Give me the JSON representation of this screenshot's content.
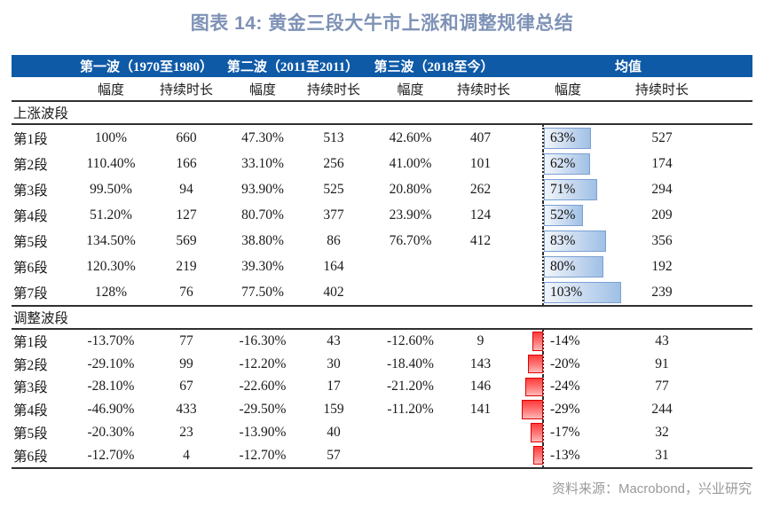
{
  "title": "图表 14: 黄金三段大牛市上涨和调整规律总结",
  "source": "资料来源：Macrobond，兴业研究",
  "colors": {
    "header_band": "#0f5aa7",
    "title_text": "#7e92b6",
    "up_bar_border": "#7ba0d4",
    "up_bar_fill": "#9fc0e6",
    "down_bar_border": "#e00000",
    "down_bar_fill": "#ff3b3b",
    "source_text": "#9a9a9a"
  },
  "table": {
    "wave_headers": [
      {
        "label": "第一波（1970至1980）"
      },
      {
        "label": "第二波（2011至2011）"
      },
      {
        "label": "第三波（2018至今）"
      },
      {
        "label": "均值"
      }
    ],
    "sub_headers": [
      "幅度",
      "持续时长",
      "幅度",
      "持续时长",
      "幅度",
      "持续时长",
      "幅度",
      "持续时长"
    ],
    "sections": [
      {
        "label": "上涨波段",
        "type": "up",
        "rows": [
          {
            "label": "第1段",
            "w1_amp": "100%",
            "w1_dur": "660",
            "w2_amp": "47.30%",
            "w2_dur": "513",
            "w3_amp": "42.60%",
            "w3_dur": "407",
            "mean_amp": "63%",
            "mean_val": 63,
            "mean_dur": "527"
          },
          {
            "label": "第2段",
            "w1_amp": "110.40%",
            "w1_dur": "166",
            "w2_amp": "33.10%",
            "w2_dur": "256",
            "w3_amp": "41.00%",
            "w3_dur": "101",
            "mean_amp": "62%",
            "mean_val": 62,
            "mean_dur": "174"
          },
          {
            "label": "第3段",
            "w1_amp": "99.50%",
            "w1_dur": "94",
            "w2_amp": "93.90%",
            "w2_dur": "525",
            "w3_amp": "20.80%",
            "w3_dur": "262",
            "mean_amp": "71%",
            "mean_val": 71,
            "mean_dur": "294"
          },
          {
            "label": "第4段",
            "w1_amp": "51.20%",
            "w1_dur": "127",
            "w2_amp": "80.70%",
            "w2_dur": "377",
            "w3_amp": "23.90%",
            "w3_dur": "124",
            "mean_amp": "52%",
            "mean_val": 52,
            "mean_dur": "209"
          },
          {
            "label": "第5段",
            "w1_amp": "134.50%",
            "w1_dur": "569",
            "w2_amp": "38.80%",
            "w2_dur": "86",
            "w3_amp": "76.70%",
            "w3_dur": "412",
            "mean_amp": "83%",
            "mean_val": 83,
            "mean_dur": "356"
          },
          {
            "label": "第6段",
            "w1_amp": "120.30%",
            "w1_dur": "219",
            "w2_amp": "39.30%",
            "w2_dur": "164",
            "w3_amp": "",
            "w3_dur": "",
            "mean_amp": "80%",
            "mean_val": 80,
            "mean_dur": "192"
          },
          {
            "label": "第7段",
            "w1_amp": "128%",
            "w1_dur": "76",
            "w2_amp": "77.50%",
            "w2_dur": "402",
            "w3_amp": "",
            "w3_dur": "",
            "mean_amp": "103%",
            "mean_val": 103,
            "mean_dur": "239"
          }
        ]
      },
      {
        "label": "调整波段",
        "type": "down",
        "rows": [
          {
            "label": "第1段",
            "w1_amp": "-13.70%",
            "w1_dur": "77",
            "w2_amp": "-16.30%",
            "w2_dur": "43",
            "w3_amp": "-12.60%",
            "w3_dur": "9",
            "mean_amp": "-14%",
            "mean_val": -14,
            "mean_dur": "43"
          },
          {
            "label": "第2段",
            "w1_amp": "-29.10%",
            "w1_dur": "99",
            "w2_amp": "-12.20%",
            "w2_dur": "30",
            "w3_amp": "-18.40%",
            "w3_dur": "143",
            "mean_amp": "-20%",
            "mean_val": -20,
            "mean_dur": "91"
          },
          {
            "label": "第3段",
            "w1_amp": "-28.10%",
            "w1_dur": "67",
            "w2_amp": "-22.60%",
            "w2_dur": "17",
            "w3_amp": "-21.20%",
            "w3_dur": "146",
            "mean_amp": "-24%",
            "mean_val": -24,
            "mean_dur": "77"
          },
          {
            "label": "第4段",
            "w1_amp": "-46.90%",
            "w1_dur": "433",
            "w2_amp": "-29.50%",
            "w2_dur": "159",
            "w3_amp": "-11.20%",
            "w3_dur": "141",
            "mean_amp": "-29%",
            "mean_val": -29,
            "mean_dur": "244"
          },
          {
            "label": "第5段",
            "w1_amp": "-20.30%",
            "w1_dur": "23",
            "w2_amp": "-13.90%",
            "w2_dur": "40",
            "w3_amp": "",
            "w3_dur": "",
            "mean_amp": "-17%",
            "mean_val": -17,
            "mean_dur": "32"
          },
          {
            "label": "第6段",
            "w1_amp": "-12.70%",
            "w1_dur": "4",
            "w2_amp": "-12.70%",
            "w2_dur": "57",
            "w3_amp": "",
            "w3_dur": "",
            "mean_amp": "-13%",
            "mean_val": -13,
            "mean_dur": "31"
          }
        ]
      }
    ]
  },
  "chart_data": {
    "type": "table",
    "title": "图表 14: 黄金三段大牛市上涨和调整规律总结",
    "columns": [
      "段",
      "第一波（1970至1980）幅度",
      "第一波 持续时长",
      "第二波（2011至2011）幅度",
      "第二波 持续时长",
      "第三波（2018至今）幅度",
      "第三波 持续时长",
      "均值 幅度",
      "均值 持续时长"
    ],
    "sections": [
      {
        "name": "上涨波段",
        "rows": [
          [
            "第1段",
            "100%",
            660,
            "47.30%",
            513,
            "42.60%",
            407,
            "63%",
            527
          ],
          [
            "第2段",
            "110.40%",
            166,
            "33.10%",
            256,
            "41.00%",
            101,
            "62%",
            174
          ],
          [
            "第3段",
            "99.50%",
            94,
            "93.90%",
            525,
            "20.80%",
            262,
            "71%",
            294
          ],
          [
            "第4段",
            "51.20%",
            127,
            "80.70%",
            377,
            "23.90%",
            124,
            "52%",
            209
          ],
          [
            "第5段",
            "134.50%",
            569,
            "38.80%",
            86,
            "76.70%",
            412,
            "83%",
            356
          ],
          [
            "第6段",
            "120.30%",
            219,
            "39.30%",
            164,
            null,
            null,
            "80%",
            192
          ],
          [
            "第7段",
            "128%",
            76,
            "77.50%",
            402,
            null,
            null,
            "103%",
            239
          ]
        ]
      },
      {
        "name": "调整波段",
        "rows": [
          [
            "第1段",
            "-13.70%",
            77,
            "-16.30%",
            43,
            "-12.60%",
            9,
            "-14%",
            43
          ],
          [
            "第2段",
            "-29.10%",
            99,
            "-12.20%",
            30,
            "-18.40%",
            143,
            "-20%",
            91
          ],
          [
            "第3段",
            "-28.10%",
            67,
            "-22.60%",
            17,
            "-21.20%",
            146,
            "-24%",
            77
          ],
          [
            "第4段",
            "-46.90%",
            433,
            "-29.50%",
            159,
            "-11.20%",
            141,
            "-29%",
            244
          ],
          [
            "第5段",
            "-20.30%",
            23,
            "-13.90%",
            40,
            null,
            null,
            "-17%",
            32
          ],
          [
            "第6段",
            "-12.70%",
            4,
            "-12.70%",
            57,
            null,
            null,
            "-13%",
            31
          ]
        ]
      }
    ],
    "embedded_bar_chart": {
      "type": "bar",
      "orientation": "horizontal",
      "categories_up": [
        "第1段",
        "第2段",
        "第3段",
        "第4段",
        "第5段",
        "第6段",
        "第7段"
      ],
      "values_up": [
        63,
        62,
        71,
        52,
        83,
        80,
        103
      ],
      "categories_down": [
        "第1段",
        "第2段",
        "第3段",
        "第4段",
        "第5段",
        "第6段"
      ],
      "values_down": [
        -14,
        -20,
        -24,
        -29,
        -17,
        -13
      ],
      "unit": "%",
      "axis_zero": "dashed vertical line"
    }
  }
}
